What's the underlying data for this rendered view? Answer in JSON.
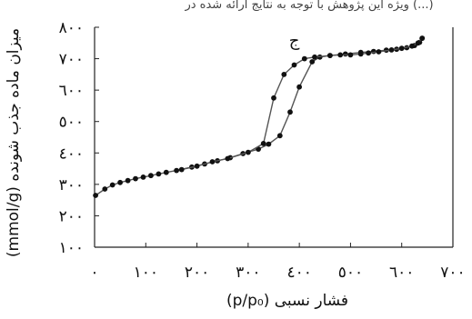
{
  "caption_fragment": "ویژه این پژوهش با توجه به نتایج ارائه شده در (...)",
  "chart_data": {
    "type": "line",
    "xlabel": "فشار نسبی (p/p₀)",
    "ylabel": "میزان ماده جذب شونده (mmol/g)",
    "xlim": [
      0,
      700
    ],
    "ylim": [
      100,
      800
    ],
    "x_ticks": [
      0,
      100,
      200,
      300,
      400,
      500,
      600,
      700
    ],
    "x_tick_labels": [
      "٠",
      "١٠٠",
      "٢٠٠",
      "٣٠٠",
      "٤٠٠",
      "٥٠٠",
      "٦٠٠",
      "٧٠٠"
    ],
    "y_ticks": [
      100,
      200,
      300,
      400,
      500,
      600,
      700,
      800
    ],
    "y_tick_labels": [
      "١٠٠",
      "٢٠٠",
      "٣٠٠",
      "٤٠٠",
      "٥٠٠",
      "٦٠٠",
      "٧٠٠",
      "٨٠٠"
    ],
    "grid": false,
    "annotation": {
      "text": "ج",
      "x": 390,
      "y": 740
    },
    "series": [
      {
        "color": "#555555",
        "marker_color": "#111111",
        "points": [
          [
            2,
            265
          ],
          [
            20,
            285
          ],
          [
            35,
            298
          ],
          [
            50,
            306
          ],
          [
            65,
            312
          ],
          [
            80,
            318
          ],
          [
            95,
            323
          ],
          [
            110,
            328
          ],
          [
            125,
            333
          ],
          [
            140,
            338
          ],
          [
            160,
            344
          ],
          [
            190,
            355
          ],
          [
            215,
            365
          ],
          [
            240,
            375
          ],
          [
            265,
            385
          ],
          [
            290,
            398
          ],
          [
            320,
            412
          ],
          [
            340,
            428
          ],
          [
            362,
            455
          ],
          [
            382,
            530
          ],
          [
            400,
            610
          ],
          [
            425,
            690
          ],
          [
            440,
            705
          ],
          [
            460,
            710
          ],
          [
            490,
            715
          ],
          [
            520,
            720
          ],
          [
            545,
            723
          ],
          [
            570,
            727
          ],
          [
            590,
            730
          ],
          [
            610,
            735
          ],
          [
            625,
            742
          ],
          [
            635,
            752
          ],
          [
            640,
            765
          ]
        ]
      },
      {
        "color": "#555555",
        "marker_color": "#111111",
        "points": [
          [
            640,
            765
          ],
          [
            632,
            750
          ],
          [
            620,
            740
          ],
          [
            600,
            733
          ],
          [
            580,
            728
          ],
          [
            555,
            722
          ],
          [
            535,
            718
          ],
          [
            520,
            715
          ],
          [
            500,
            712
          ],
          [
            480,
            712
          ],
          [
            460,
            710
          ],
          [
            430,
            705
          ],
          [
            410,
            700
          ],
          [
            390,
            680
          ],
          [
            370,
            650
          ],
          [
            350,
            575
          ],
          [
            330,
            430
          ],
          [
            300,
            402
          ],
          [
            260,
            382
          ],
          [
            230,
            372
          ],
          [
            200,
            358
          ],
          [
            170,
            347
          ]
        ]
      }
    ]
  }
}
